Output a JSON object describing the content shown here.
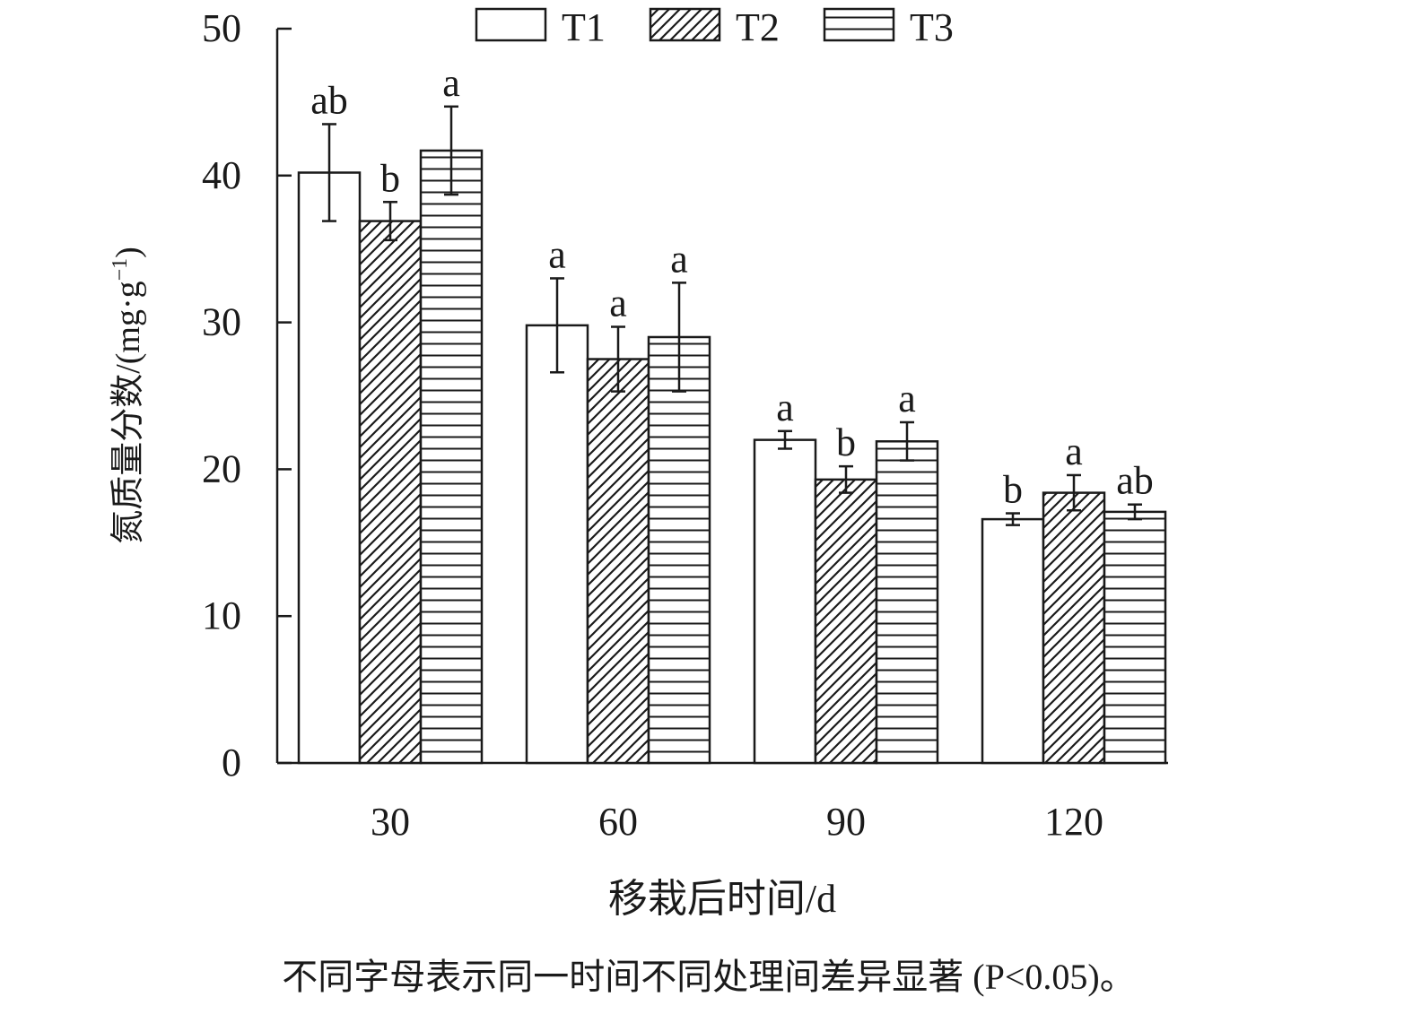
{
  "chart_data": {
    "type": "bar",
    "categories": [
      "30",
      "60",
      "90",
      "120"
    ],
    "series": [
      {
        "name": "T1",
        "pattern": "none",
        "values": [
          40.2,
          29.8,
          22.0,
          16.6
        ],
        "errors": [
          3.3,
          3.2,
          0.6,
          0.4
        ],
        "letters": [
          "ab",
          "a",
          "a",
          "b"
        ]
      },
      {
        "name": "T2",
        "pattern": "diagonal",
        "values": [
          36.9,
          27.5,
          19.3,
          18.4
        ],
        "errors": [
          1.3,
          2.2,
          0.9,
          1.2
        ],
        "letters": [
          "b",
          "a",
          "b",
          "a"
        ]
      },
      {
        "name": "T3",
        "pattern": "horizontal",
        "values": [
          41.7,
          29.0,
          21.9,
          17.1
        ],
        "errors": [
          3.0,
          3.7,
          1.3,
          0.5
        ],
        "letters": [
          "a",
          "a",
          "a",
          "ab"
        ]
      }
    ],
    "ylim": [
      0,
      50
    ],
    "yticks": [
      0,
      10,
      20,
      30,
      40,
      50
    ],
    "ylabel": "氮质量分数/(mg·g",
    "ylabel_sup": "−1",
    "ylabel_close": ")",
    "xlabel": "移栽后时间/d",
    "note": "不同字母表示同一时间不同处理间差异显著 (P<0.05)。",
    "legend_position": "top",
    "grid": false,
    "colors": {
      "stroke": "#1a1a1a",
      "fill": "#ffffff"
    }
  }
}
